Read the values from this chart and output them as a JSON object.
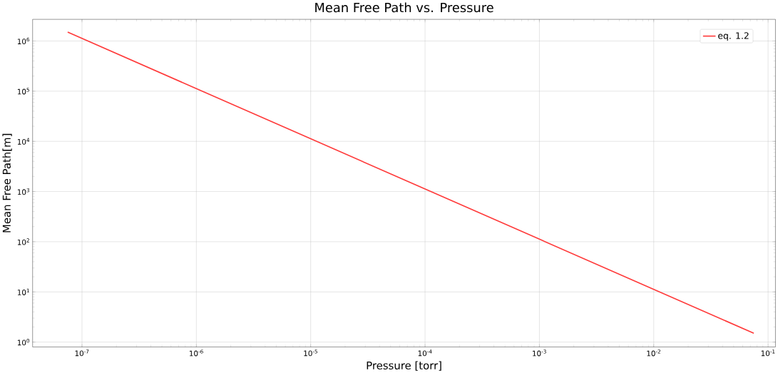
{
  "chart_data": {
    "type": "line",
    "title": "Mean Free Path vs. Pressure",
    "xlabel": "Pressure [torr]",
    "ylabel": "Mean Free Path[m]",
    "x": [
      7.5e-08,
      1e-06,
      1e-05,
      0.0001,
      0.001,
      0.01,
      0.075
    ],
    "series": [
      {
        "name": "eq. 1.2",
        "color": "#ff3b3b",
        "values": [
          1500000.0,
          112500.0,
          11250.0,
          1125,
          112.5,
          11.25,
          1.5
        ]
      }
    ],
    "log": "xy",
    "grid": true,
    "legend": "top right",
    "line_style": "solid",
    "marker": "none",
    "xlim": [
      3.7e-08,
      0.116
    ],
    "ylim": [
      0.8,
      2700000.0
    ],
    "xticks": [
      {
        "value": 1e-07,
        "label": "10$^{-7}$"
      },
      {
        "value": 1e-06,
        "label": "10$^{-6}$"
      },
      {
        "value": 1e-05,
        "label": "10$^{-5}$"
      },
      {
        "value": 0.0001,
        "label": "10$^{-4}$"
      },
      {
        "value": 0.001,
        "label": "10$^{-3}$"
      },
      {
        "value": 0.01,
        "label": "10$^{-2}$"
      },
      {
        "value": 0.1,
        "label": "10$^{-1}$"
      }
    ],
    "yticks": [
      {
        "value": 1,
        "label": "10$^{0}$"
      },
      {
        "value": 10,
        "label": "10$^{1}$"
      },
      {
        "value": 100,
        "label": "10$^{2}$"
      },
      {
        "value": 1000,
        "label": "10$^{3}$"
      },
      {
        "value": 10000.0,
        "label": "10$^{4}$"
      },
      {
        "value": 100000.0,
        "label": "10$^{5}$"
      },
      {
        "value": 1000000.0,
        "label": "10$^{6}$"
      }
    ]
  }
}
